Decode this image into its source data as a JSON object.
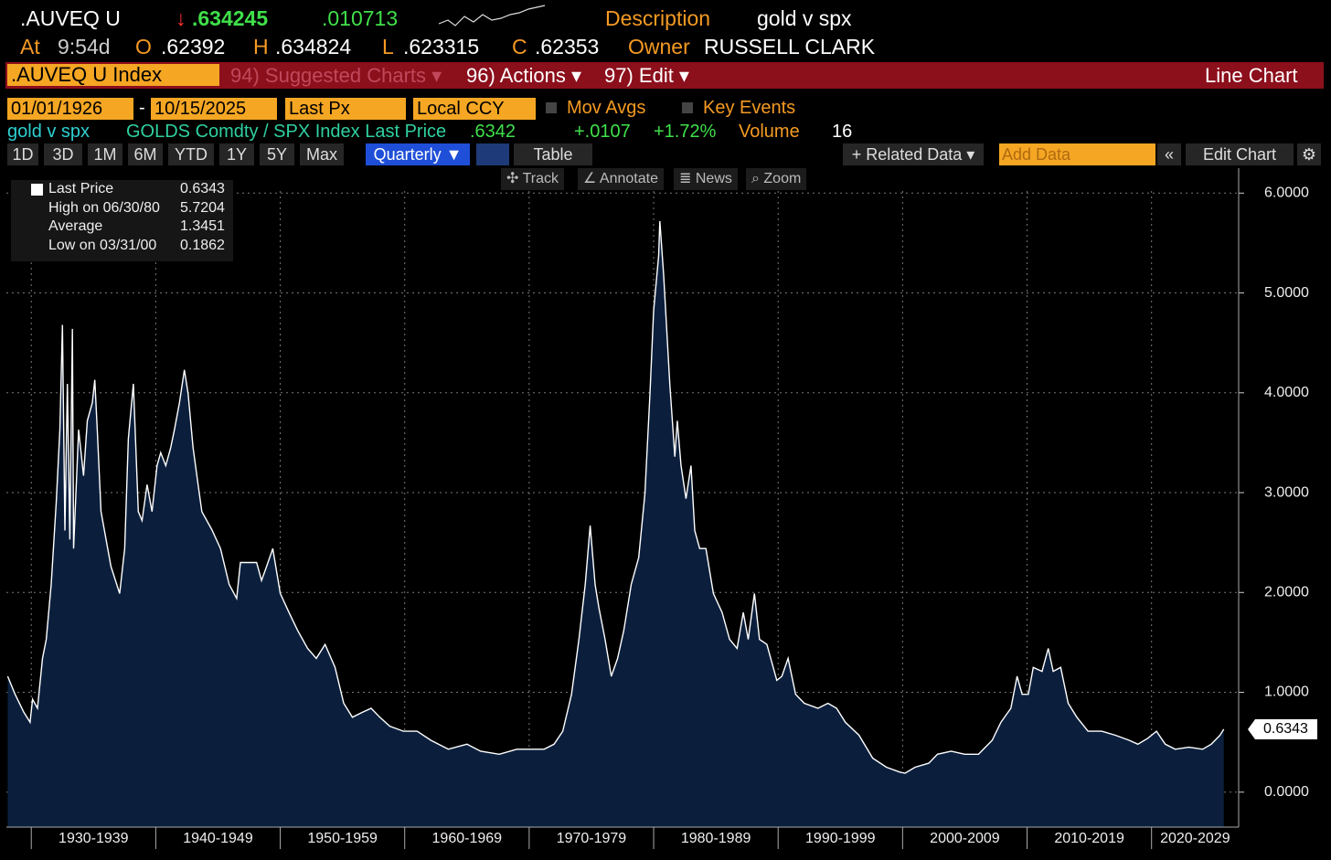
{
  "header": {
    "ticker": ".AUVEQ U",
    "direction": "↓",
    "price": ".634245",
    "change": ".010713",
    "description_label": "Description",
    "description": "gold v spx",
    "at_label": "At",
    "time": "9:54d",
    "open_label": "O",
    "open": ".62392",
    "high_label": "H",
    "high": ".634824",
    "low_label": "L",
    "low": ".623315",
    "close_label": "C",
    "close": ".62353",
    "owner_label": "Owner",
    "owner": "RUSSELL CLARK"
  },
  "menu": {
    "security": ".AUVEQ U Index",
    "items": [
      "94) Suggested Charts ▾",
      "96) Actions ▾",
      "97) Edit ▾"
    ],
    "chart_type": "Line Chart"
  },
  "settings": {
    "start_date": "01/01/1926",
    "separator": "-",
    "end_date": "10/15/2025",
    "field": "Last Px",
    "currency": "Local CCY",
    "mov_avgs": "Mov Avgs",
    "key_events": "Key Events"
  },
  "summary": {
    "name": "gold v spx",
    "source": "GOLDS Comdty / SPX Index Last Price",
    "last": ".6342",
    "change": "+.0107",
    "change_pct": "+1.72%",
    "volume_label": "Volume",
    "volume": "16"
  },
  "toolbar": {
    "periods": [
      "1D",
      "3D",
      "1M",
      "6M",
      "YTD",
      "1Y",
      "5Y",
      "Max"
    ],
    "frequency": "Quarterly ▼",
    "table": "Table",
    "related": "+ Related Data ▾",
    "add_data": "Add Data",
    "edit_chart": "Edit Chart"
  },
  "chart_tools": [
    "Track",
    "Annotate",
    "News",
    "Zoom"
  ],
  "legend": [
    {
      "label": "Last Price",
      "value": "0.6343"
    },
    {
      "label": "High on 06/30/80",
      "value": "5.7204"
    },
    {
      "label": "Average",
      "value": "1.3451"
    },
    {
      "label": "Low on 03/31/00",
      "value": "0.1862"
    }
  ],
  "chart_data": {
    "type": "area",
    "color": "#ffffff",
    "fill": "#0b1f3d",
    "grid": true,
    "last_label": "0.6343",
    "xlim": [
      1928,
      2027
    ],
    "xticks": [
      {
        "value": 1930,
        "label": "1930-1939"
      },
      {
        "value": 1940,
        "label": "1940-1949"
      },
      {
        "value": 1950,
        "label": "1950-1959"
      },
      {
        "value": 1960,
        "label": "1960-1969"
      },
      {
        "value": 1970,
        "label": "1970-1979"
      },
      {
        "value": 1980,
        "label": "1980-1989"
      },
      {
        "value": 1990,
        "label": "1990-1999"
      },
      {
        "value": 2000,
        "label": "2000-2009"
      },
      {
        "value": 2010,
        "label": "2010-2019"
      },
      {
        "value": 2020,
        "label": "2020-2029"
      }
    ],
    "ylim": [
      -0.35,
      6.25
    ],
    "yticks": [
      {
        "value": 0,
        "label": "0.0000"
      },
      {
        "value": 1,
        "label": "1.0000"
      },
      {
        "value": 2,
        "label": "2.0000"
      },
      {
        "value": 3,
        "label": "3.0000"
      },
      {
        "value": 4,
        "label": "4.0000"
      },
      {
        "value": 5,
        "label": "5.0000"
      },
      {
        "value": 6,
        "label": "6.0000"
      }
    ],
    "x": [
      1928.1,
      1928.7,
      1929.4,
      1929.9,
      1930.1,
      1930.5,
      1930.9,
      1931.2,
      1931.6,
      1932.0,
      1932.3,
      1932.5,
      1932.7,
      1932.9,
      1933.1,
      1933.3,
      1933.4,
      1933.8,
      1934.2,
      1934.5,
      1934.9,
      1935.1,
      1935.3,
      1935.6,
      1936.4,
      1937.1,
      1937.5,
      1937.8,
      1938.2,
      1938.6,
      1938.9,
      1939.3,
      1939.7,
      1940.1,
      1940.4,
      1940.8,
      1941.2,
      1941.5,
      1941.9,
      1942.3,
      1942.6,
      1943.0,
      1943.4,
      1943.7,
      1944.5,
      1945.2,
      1945.9,
      1946.5,
      1946.8,
      1947.8,
      1948.1,
      1948.5,
      1948.9,
      1949.4,
      1950.0,
      1950.7,
      1951.4,
      1952.2,
      1952.9,
      1953.6,
      1954.4,
      1955.1,
      1955.8,
      1956.6,
      1957.3,
      1958.0,
      1958.8,
      1959.9,
      1961.0,
      1962.1,
      1963.5,
      1965.0,
      1966.1,
      1967.6,
      1969.0,
      1970.1,
      1971.2,
      1972.0,
      1972.7,
      1973.4,
      1974.0,
      1974.5,
      1974.9,
      1975.3,
      1975.6,
      1976.1,
      1976.6,
      1977.1,
      1977.6,
      1978.2,
      1978.8,
      1979.3,
      1979.7,
      1980.0,
      1980.4,
      1980.5,
      1980.8,
      1981.3,
      1981.7,
      1981.9,
      1982.2,
      1982.6,
      1983.0,
      1983.3,
      1983.7,
      1984.2,
      1984.8,
      1985.5,
      1986.1,
      1986.7,
      1987.2,
      1987.6,
      1988.1,
      1988.5,
      1989.1,
      1989.6,
      1989.9,
      1990.3,
      1990.8,
      1991.4,
      1992.1,
      1993.2,
      1994.0,
      1994.7,
      1995.4,
      1996.5,
      1997.6,
      1998.7,
      1999.8,
      2000.2,
      2001.0,
      2002.1,
      2002.8,
      2003.9,
      2005.0,
      2006.1,
      2007.2,
      2007.9,
      2008.7,
      2009.2,
      2009.6,
      2010.1,
      2010.5,
      2011.2,
      2011.7,
      2012.1,
      2012.7,
      2013.3,
      2014.0,
      2014.9,
      2016.0,
      2017.1,
      2018.2,
      2018.9,
      2019.7,
      2020.4,
      2021.1,
      2021.9,
      2023.0,
      2024.1,
      2024.8,
      2025.5,
      2025.8
    ],
    "values": [
      1.16,
      0.98,
      0.8,
      0.7,
      0.93,
      0.84,
      1.34,
      1.53,
      2.08,
      2.9,
      3.63,
      4.68,
      2.62,
      4.09,
      2.53,
      4.64,
      2.44,
      3.63,
      3.17,
      3.72,
      3.9,
      4.13,
      3.63,
      2.81,
      2.26,
      1.99,
      2.44,
      3.54,
      4.09,
      2.81,
      2.72,
      3.08,
      2.81,
      3.27,
      3.4,
      3.27,
      3.45,
      3.63,
      3.9,
      4.23,
      3.99,
      3.45,
      3.08,
      2.81,
      2.63,
      2.44,
      2.08,
      1.94,
      2.3,
      2.3,
      2.3,
      2.12,
      2.26,
      2.44,
      1.99,
      1.8,
      1.62,
      1.44,
      1.34,
      1.48,
      1.25,
      0.89,
      0.75,
      0.8,
      0.84,
      0.75,
      0.66,
      0.61,
      0.61,
      0.52,
      0.43,
      0.48,
      0.41,
      0.38,
      0.43,
      0.43,
      0.43,
      0.48,
      0.61,
      0.98,
      1.53,
      2.08,
      2.67,
      2.08,
      1.85,
      1.53,
      1.16,
      1.34,
      1.62,
      2.08,
      2.35,
      2.99,
      3.99,
      4.82,
      5.37,
      5.72,
      5.19,
      4.09,
      3.36,
      3.72,
      3.27,
      2.94,
      3.27,
      2.62,
      2.44,
      2.44,
      1.99,
      1.8,
      1.53,
      1.44,
      1.8,
      1.53,
      1.99,
      1.53,
      1.48,
      1.25,
      1.12,
      1.16,
      1.34,
      0.98,
      0.89,
      0.84,
      0.89,
      0.84,
      0.7,
      0.57,
      0.34,
      0.25,
      0.2,
      0.19,
      0.25,
      0.29,
      0.38,
      0.41,
      0.38,
      0.38,
      0.52,
      0.7,
      0.84,
      1.16,
      0.98,
      0.98,
      1.25,
      1.21,
      1.44,
      1.21,
      1.25,
      0.89,
      0.75,
      0.61,
      0.61,
      0.57,
      0.52,
      0.48,
      0.54,
      0.61,
      0.48,
      0.43,
      0.45,
      0.43,
      0.48,
      0.57,
      0.63
    ]
  }
}
